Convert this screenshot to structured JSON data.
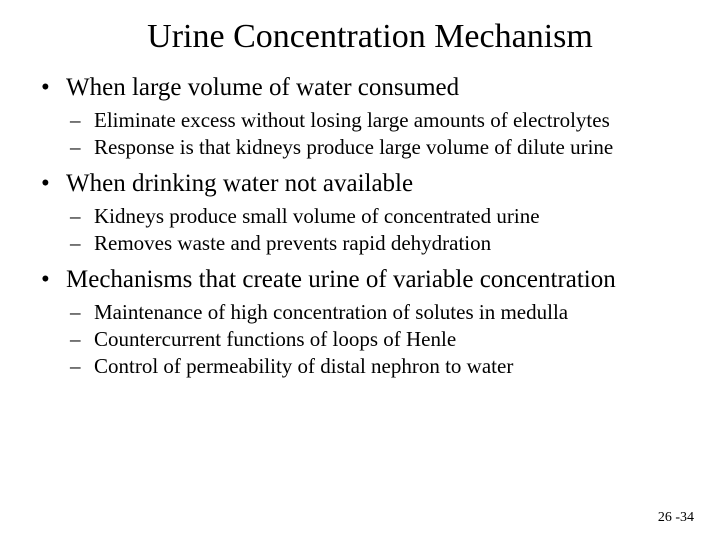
{
  "title": "Urine Concentration Mechanism",
  "bullets": [
    {
      "text": "When large volume of water consumed",
      "sub": [
        "Eliminate excess without losing large amounts of electrolytes",
        "Response is that kidneys produce large volume of dilute urine"
      ]
    },
    {
      "text": "When drinking water not available",
      "sub": [
        "Kidneys produce small volume of concentrated urine",
        "Removes waste and prevents rapid dehydration"
      ]
    },
    {
      "text": "Mechanisms that create urine of variable concentration",
      "sub": [
        "Maintenance of high concentration of solutes in medulla",
        "Countercurrent functions of loops of Henle",
        "Control of permeability of distal nephron to water"
      ]
    }
  ],
  "pageNumber": "26 -34",
  "bulletMarker": "•",
  "dashMarker": "–",
  "colors": {
    "background": "#ffffff",
    "text": "#000000"
  },
  "font": {
    "family": "Times New Roman",
    "title_size": 34,
    "l1_size": 25,
    "l2_size": 21,
    "page_size": 14
  }
}
